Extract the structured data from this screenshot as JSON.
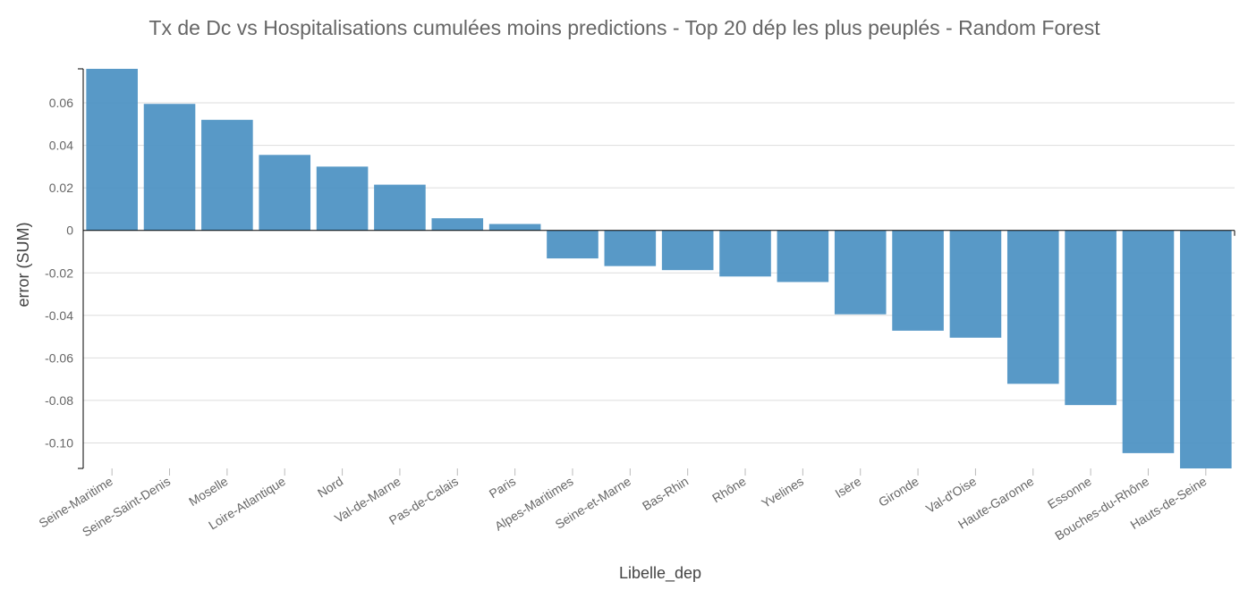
{
  "chart_data": {
    "type": "bar",
    "title": "Tx de Dc vs Hospitalisations cumulées moins predictions - Top 20 dép les plus peuplés - Random Forest",
    "xlabel": "Libelle_dep",
    "ylabel": "error (SUM)",
    "ylim": [
      -0.112,
      0.076
    ],
    "yticks": [
      -0.1,
      -0.08,
      -0.06,
      -0.04,
      -0.02,
      0,
      0.02,
      0.04,
      0.06
    ],
    "ytick_labels": [
      "-0.10",
      "-0.08",
      "-0.06",
      "-0.04",
      "-0.02",
      "0",
      "0.02",
      "0.04",
      "0.06"
    ],
    "grid": true,
    "bar_color": "#4a90c2",
    "categories": [
      "Seine-Maritime",
      "Seine-Saint-Denis",
      "Moselle",
      "Loire-Atlantique",
      "Nord",
      "Val-de-Marne",
      "Pas-de-Calais",
      "Paris",
      "Alpes-Maritimes",
      "Seine-et-Marne",
      "Bas-Rhin",
      "Rhône",
      "Yvelines",
      "Isère",
      "Gironde",
      "Val-d'Oise",
      "Haute-Garonne",
      "Essonne",
      "Bouches-du-Rhône",
      "Hauts-de-Seine"
    ],
    "values": [
      0.076,
      0.0595,
      0.052,
      0.0355,
      0.03,
      0.0215,
      0.0057,
      0.003,
      -0.0132,
      -0.0168,
      -0.0187,
      -0.0217,
      -0.0243,
      -0.0395,
      -0.0472,
      -0.0505,
      -0.0722,
      -0.0822,
      -0.1048,
      -0.112
    ]
  }
}
